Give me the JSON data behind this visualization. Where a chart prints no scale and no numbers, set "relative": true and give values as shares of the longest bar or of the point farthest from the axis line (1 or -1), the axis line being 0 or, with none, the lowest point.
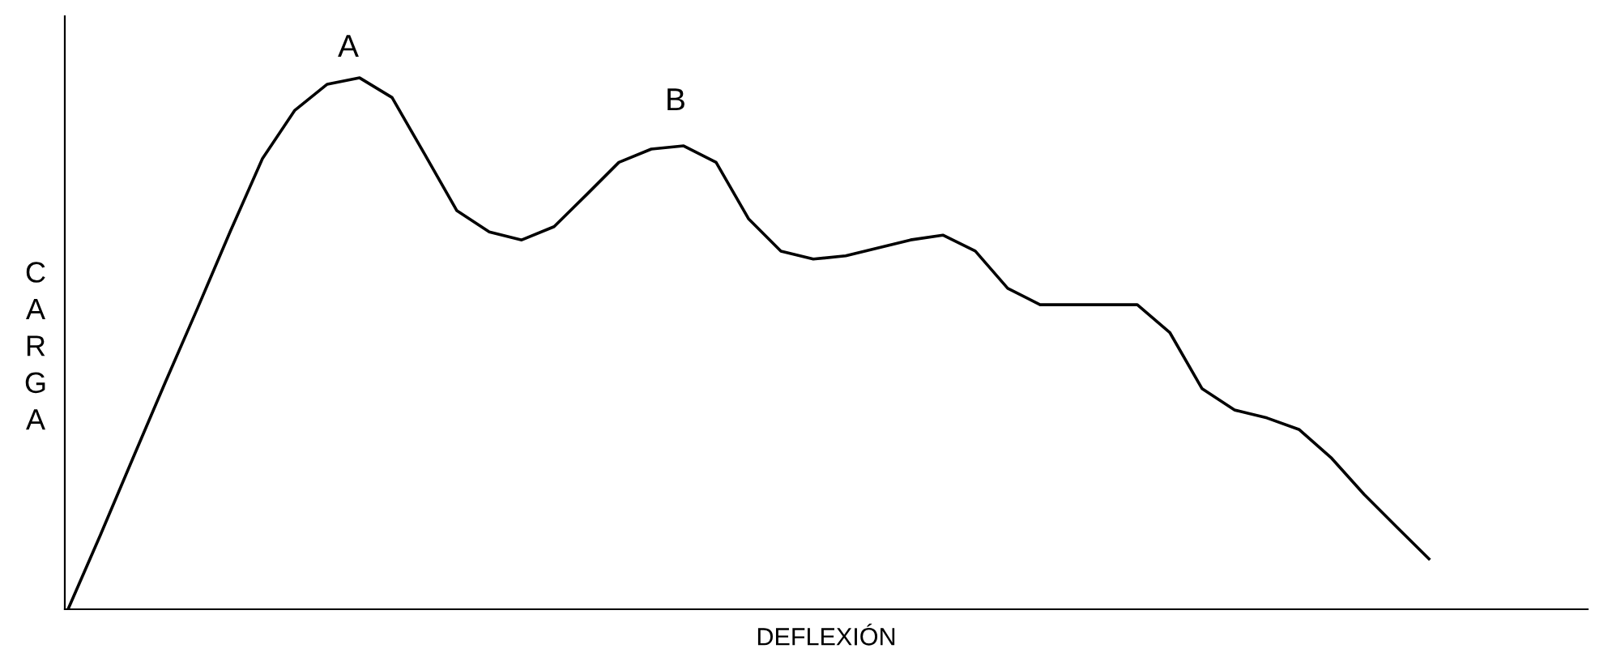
{
  "chart_data": {
    "type": "line",
    "relative": true,
    "xlabel": "DEFLEXIÓN",
    "ylabel": "CARGA",
    "categories": [
      null,
      null,
      null,
      null,
      null,
      null,
      null,
      null,
      null,
      null,
      null,
      null,
      null,
      null,
      null,
      null,
      null,
      null,
      null,
      null,
      null,
      null,
      null,
      null,
      null,
      null,
      null,
      null,
      null,
      null,
      null,
      null,
      null,
      null,
      null,
      null,
      null,
      null,
      null,
      null,
      null,
      null,
      null
    ],
    "series": [
      {
        "color": "#000000",
        "values": [
          0,
          0.14,
          0.284,
          0.427,
          0.567,
          0.71,
          0.848,
          0.939,
          0.988,
          1,
          0.963,
          0.857,
          0.75,
          0.71,
          0.695,
          0.72,
          0.78,
          0.841,
          0.866,
          0.872,
          0.841,
          0.735,
          0.674,
          0.659,
          0.665,
          0.68,
          0.695,
          0.704,
          0.674,
          0.604,
          0.573,
          0.573,
          0.573,
          0.573,
          0.521,
          0.415,
          0.375,
          0.36,
          0.338,
          0.284,
          0.216,
          0.155,
          0.095
        ]
      }
    ],
    "annotations": [
      "A",
      "B"
    ],
    "legend": false,
    "marker": "none",
    "line_style": "solid"
  }
}
